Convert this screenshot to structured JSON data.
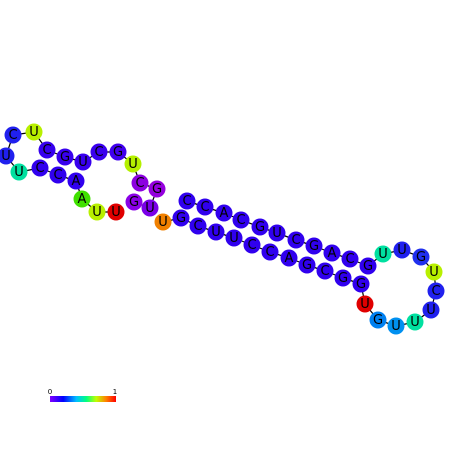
{
  "nodes": [
    {
      "label": "G",
      "color": "#8a00e6"
    },
    {
      "label": "U",
      "color": "#7a00e8"
    },
    {
      "label": "G",
      "color": "#9400dd"
    },
    {
      "label": "C",
      "color": "#8c00e0"
    },
    {
      "label": "U",
      "color": "#b4f000"
    },
    {
      "label": "G",
      "color": "#4000ee"
    },
    {
      "label": "C",
      "color": "#3a00ee"
    },
    {
      "label": "U",
      "color": "#3800ee"
    },
    {
      "label": "G",
      "color": "#3800ee"
    },
    {
      "label": "C",
      "color": "#3600ee"
    },
    {
      "label": "U",
      "color": "#b8f000"
    },
    {
      "label": "C",
      "color": "#2020ee"
    },
    {
      "label": "U",
      "color": "#2020ee"
    },
    {
      "label": "U",
      "color": "#00e0a0"
    },
    {
      "label": "C",
      "color": "#3000ee"
    },
    {
      "label": "C",
      "color": "#3000ee"
    },
    {
      "label": "A",
      "color": "#3000ee"
    },
    {
      "label": "A",
      "color": "#40e000"
    },
    {
      "label": "U",
      "color": "#b8f000"
    },
    {
      "label": "U",
      "color": "#e00000"
    },
    {
      "label": "U",
      "color": "#f08000"
    },
    {
      "label": "G",
      "color": "#3000ee"
    },
    {
      "label": "C",
      "color": "#3000ee"
    },
    {
      "label": "U",
      "color": "#3000ee"
    },
    {
      "label": "U",
      "color": "#3000ee"
    },
    {
      "label": "C",
      "color": "#3000ee"
    },
    {
      "label": "C",
      "color": "#3000ee"
    },
    {
      "label": "A",
      "color": "#3000ee"
    },
    {
      "label": "G",
      "color": "#3000ee"
    },
    {
      "label": "C",
      "color": "#3000ee"
    },
    {
      "label": "G",
      "color": "#3000ee"
    },
    {
      "label": "G",
      "color": "#3000ee"
    },
    {
      "label": "U",
      "color": "#e00000"
    },
    {
      "label": "G",
      "color": "#0080f0"
    },
    {
      "label": "U",
      "color": "#0090f0"
    },
    {
      "label": "U",
      "color": "#00e0a0"
    },
    {
      "label": "U",
      "color": "#2020ee"
    },
    {
      "label": "C",
      "color": "#2020ee"
    },
    {
      "label": "U",
      "color": "#b8f000"
    },
    {
      "label": "G",
      "color": "#2030ee"
    },
    {
      "label": "U",
      "color": "#2020ee"
    },
    {
      "label": "U",
      "color": "#00e0a0"
    },
    {
      "label": "G",
      "color": "#3000ee"
    },
    {
      "label": "C",
      "color": "#3000ee"
    },
    {
      "label": "A",
      "color": "#3000ee"
    },
    {
      "label": "G",
      "color": "#3000ee"
    },
    {
      "label": "C",
      "color": "#3000ee"
    },
    {
      "label": "U",
      "color": "#3000ee"
    },
    {
      "label": "G",
      "color": "#3000ee"
    },
    {
      "label": "C",
      "color": "#3000ee"
    },
    {
      "label": "A",
      "color": "#3000ee"
    },
    {
      "label": "C",
      "color": "#3000ee"
    },
    {
      "label": "C",
      "color": "#3000ee"
    }
  ],
  "scale": {
    "min_label": "0",
    "max_label": "1"
  }
}
